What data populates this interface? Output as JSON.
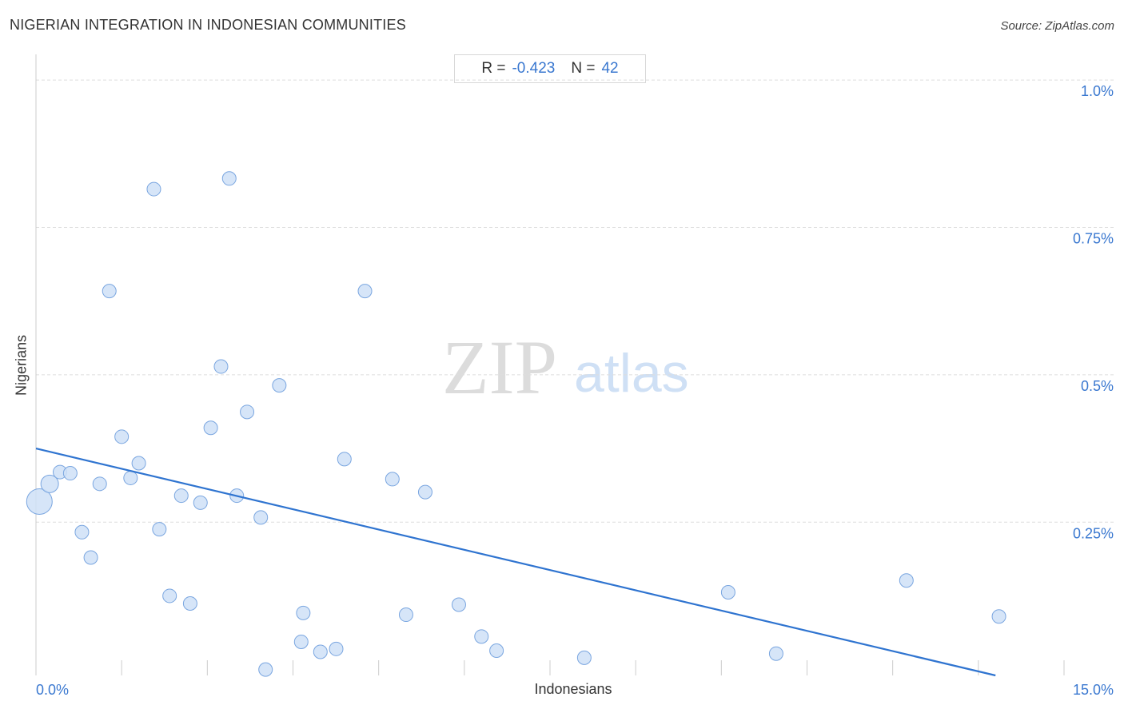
{
  "header": {
    "title": "NIGERIAN INTEGRATION IN INDONESIAN COMMUNITIES",
    "source": "Source: ZipAtlas.com"
  },
  "stats": {
    "r_label": "R =",
    "r_value": "-0.423",
    "n_label": "N =",
    "n_value": "42"
  },
  "watermark": {
    "zip": "ZIP",
    "atlas": "atlas"
  },
  "colors": {
    "accent": "#3a78d0",
    "point_fill": "#cfe0f7",
    "point_stroke": "#7aa6e0",
    "trend": "#2f74d0",
    "grid": "#dddddd"
  },
  "chart_data": {
    "type": "scatter",
    "title": "NIGERIAN INTEGRATION IN INDONESIAN COMMUNITIES",
    "xlabel": "Indonesians",
    "ylabel": "Nigerians",
    "xlim": [
      0,
      15
    ],
    "ylim": [
      -0.01,
      1.03
    ],
    "x_tick_labels": [
      {
        "value": 0,
        "label": "0.0%"
      },
      {
        "value": 15,
        "label": "15.0%"
      }
    ],
    "y_tick_labels": [
      {
        "value": 0.25,
        "label": "0.25%"
      },
      {
        "value": 0.5,
        "label": "0.5%"
      },
      {
        "value": 0.75,
        "label": "0.75%"
      },
      {
        "value": 1.0,
        "label": "1.0%"
      }
    ],
    "grid": true,
    "trendline": {
      "x": [
        0,
        14
      ],
      "y": [
        0.375,
        -0.01
      ]
    },
    "points": [
      {
        "x": 0.05,
        "y": 0.285,
        "size": "large"
      },
      {
        "x": 0.2,
        "y": 0.315,
        "size": "medium"
      },
      {
        "x": 0.35,
        "y": 0.335
      },
      {
        "x": 0.5,
        "y": 0.333
      },
      {
        "x": 0.67,
        "y": 0.233
      },
      {
        "x": 0.8,
        "y": 0.19
      },
      {
        "x": 0.93,
        "y": 0.315
      },
      {
        "x": 1.07,
        "y": 0.642
      },
      {
        "x": 1.25,
        "y": 0.395
      },
      {
        "x": 1.38,
        "y": 0.325
      },
      {
        "x": 1.5,
        "y": 0.35
      },
      {
        "x": 1.72,
        "y": 0.815
      },
      {
        "x": 1.8,
        "y": 0.238
      },
      {
        "x": 1.95,
        "y": 0.125
      },
      {
        "x": 2.12,
        "y": 0.295
      },
      {
        "x": 2.25,
        "y": 0.112
      },
      {
        "x": 2.4,
        "y": 0.283
      },
      {
        "x": 2.55,
        "y": 0.41
      },
      {
        "x": 2.7,
        "y": 0.514
      },
      {
        "x": 2.82,
        "y": 0.833
      },
      {
        "x": 2.93,
        "y": 0.295
      },
      {
        "x": 3.08,
        "y": 0.437
      },
      {
        "x": 3.28,
        "y": 0.258
      },
      {
        "x": 3.35,
        "y": 0.0
      },
      {
        "x": 3.55,
        "y": 0.482
      },
      {
        "x": 3.87,
        "y": 0.047
      },
      {
        "x": 3.9,
        "y": 0.096
      },
      {
        "x": 4.15,
        "y": 0.03
      },
      {
        "x": 4.38,
        "y": 0.035
      },
      {
        "x": 4.5,
        "y": 0.357
      },
      {
        "x": 4.8,
        "y": 0.642
      },
      {
        "x": 5.2,
        "y": 0.323
      },
      {
        "x": 5.4,
        "y": 0.093
      },
      {
        "x": 5.68,
        "y": 0.301
      },
      {
        "x": 6.17,
        "y": 0.11
      },
      {
        "x": 6.5,
        "y": 0.056
      },
      {
        "x": 6.72,
        "y": 0.032
      },
      {
        "x": 8.0,
        "y": 0.02
      },
      {
        "x": 10.1,
        "y": 0.131
      },
      {
        "x": 10.8,
        "y": 0.027
      },
      {
        "x": 12.7,
        "y": 0.151
      },
      {
        "x": 14.05,
        "y": 0.09
      }
    ]
  }
}
